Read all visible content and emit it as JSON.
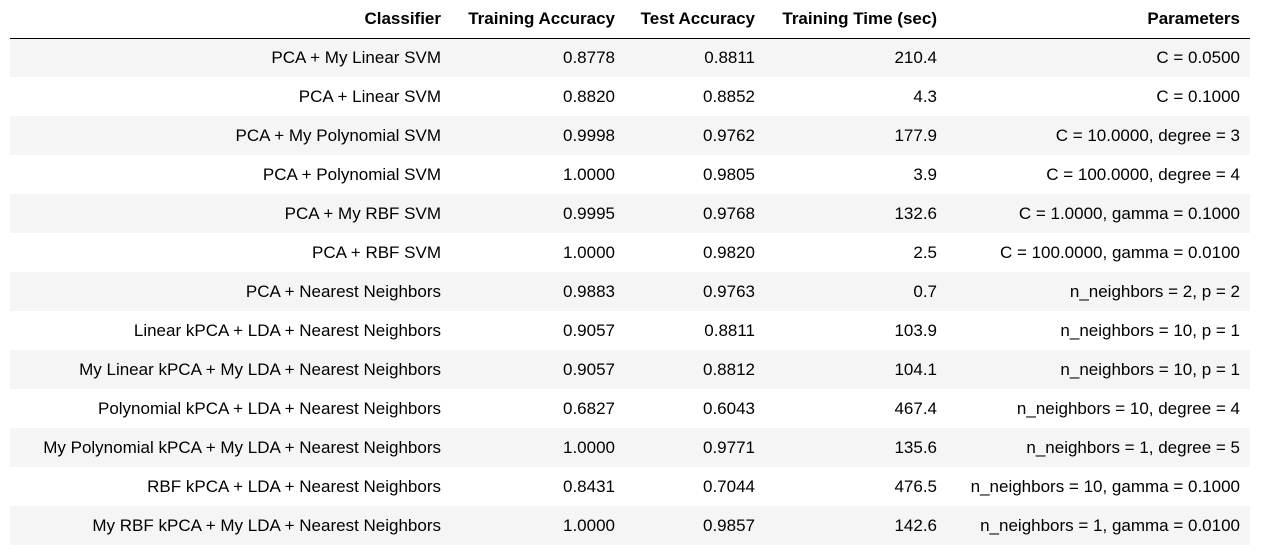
{
  "table": {
    "columns": [
      "Classifier",
      "Training Accuracy",
      "Test Accuracy",
      "Training Time (sec)",
      "Parameters"
    ],
    "rows": [
      [
        "PCA + My Linear SVM",
        "0.8778",
        "0.8811",
        "210.4",
        "C = 0.0500"
      ],
      [
        "PCA + Linear SVM",
        "0.8820",
        "0.8852",
        "4.3",
        "C = 0.1000"
      ],
      [
        "PCA + My Polynomial SVM",
        "0.9998",
        "0.9762",
        "177.9",
        "C = 10.0000, degree = 3"
      ],
      [
        "PCA + Polynomial SVM",
        "1.0000",
        "0.9805",
        "3.9",
        "C = 100.0000, degree = 4"
      ],
      [
        "PCA + My RBF SVM",
        "0.9995",
        "0.9768",
        "132.6",
        "C = 1.0000, gamma = 0.1000"
      ],
      [
        "PCA + RBF SVM",
        "1.0000",
        "0.9820",
        "2.5",
        "C = 100.0000, gamma = 0.0100"
      ],
      [
        "PCA + Nearest Neighbors",
        "0.9883",
        "0.9763",
        "0.7",
        "n_neighbors = 2, p = 2"
      ],
      [
        "Linear kPCA + LDA + Nearest Neighbors",
        "0.9057",
        "0.8811",
        "103.9",
        "n_neighbors = 10, p = 1"
      ],
      [
        "My Linear kPCA + My LDA + Nearest Neighbors",
        "0.9057",
        "0.8812",
        "104.1",
        "n_neighbors = 10, p = 1"
      ],
      [
        "Polynomial kPCA + LDA + Nearest Neighbors",
        "0.6827",
        "0.6043",
        "467.4",
        "n_neighbors = 10, degree = 4"
      ],
      [
        "My Polynomial kPCA + My LDA + Nearest Neighbors",
        "1.0000",
        "0.9771",
        "135.6",
        "n_neighbors = 1, degree = 5"
      ],
      [
        "RBF kPCA + LDA + Nearest Neighbors",
        "0.8431",
        "0.7044",
        "476.5",
        "n_neighbors = 10, gamma = 0.1000"
      ],
      [
        "My RBF kPCA + My LDA + Nearest Neighbors",
        "1.0000",
        "0.9857",
        "142.6",
        "n_neighbors = 1, gamma = 0.0100"
      ]
    ]
  },
  "colors": {
    "stripe": "#f5f5f5",
    "background": "#ffffff",
    "text": "#000000",
    "header_rule": "#000000"
  }
}
